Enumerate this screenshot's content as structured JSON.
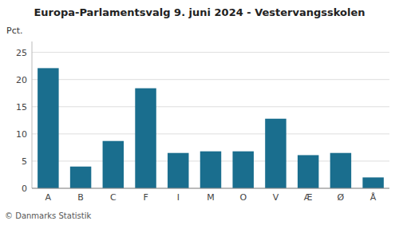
{
  "chart_data": {
    "type": "bar",
    "title": "Europa-Parlamentsvalg 9. juni 2024 - Vestervangsskolen",
    "ylabel": "Pct.",
    "footnote": "© Danmarks Statistik",
    "categories": [
      "A",
      "B",
      "C",
      "F",
      "I",
      "M",
      "O",
      "V",
      "Æ",
      "Ø",
      "Å"
    ],
    "values": [
      22.1,
      4.0,
      8.7,
      18.4,
      6.5,
      6.8,
      6.8,
      12.8,
      6.1,
      6.5,
      2.0
    ],
    "color": "#1a6e8e",
    "ylim": [
      0,
      27
    ],
    "yticks": [
      0,
      5,
      10,
      15,
      20,
      25
    ],
    "grid": true
  }
}
